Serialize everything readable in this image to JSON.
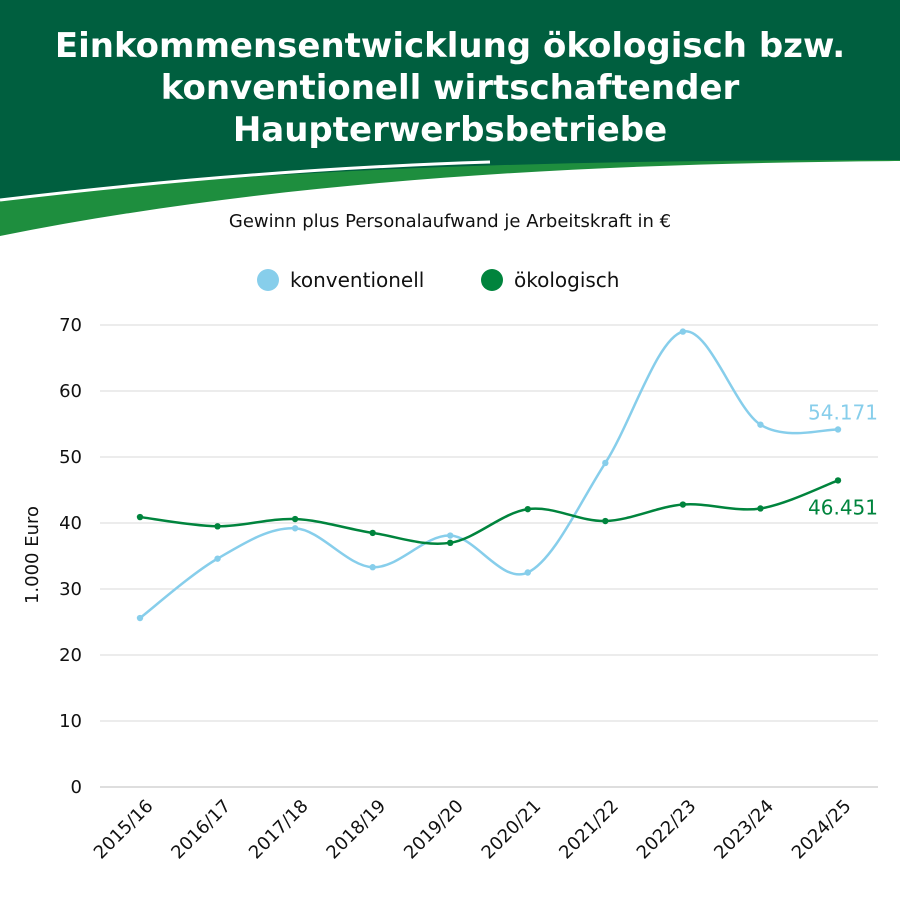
{
  "header": {
    "title_lines": [
      "Einkommensentwicklung ökologisch bzw.",
      "konventionell wirtschaftender",
      "Haupterwerbsbetriebe"
    ]
  },
  "colors": {
    "header_bg": "#005f3f",
    "swoosh": "#1e8e3e",
    "konventionell": "#87ceeb",
    "oekologisch": "#00843d"
  },
  "chart_data": {
    "type": "line",
    "title": "Einkommensentwicklung ökologisch bzw. konventionell wirtschaftender Haupterwerbsbetriebe",
    "subtitle": "Gewinn plus Personalaufwand je Arbeitskraft in €",
    "ylabel": "1.000 Euro",
    "xlabel": "",
    "ylim": [
      0,
      70
    ],
    "yticks": [
      0,
      10,
      20,
      30,
      40,
      50,
      60,
      70
    ],
    "grid": true,
    "legend_position": "top-center",
    "categories": [
      "2015/16",
      "2016/17",
      "2017/18",
      "2018/19",
      "2019/20",
      "2020/21",
      "2021/22",
      "2022/23",
      "2023/24",
      "2024/25"
    ],
    "series": [
      {
        "name": "konventionell",
        "color": "#87ceeb",
        "values": [
          25.6,
          34.6,
          39.2,
          33.3,
          38.1,
          32.5,
          49.1,
          69.0,
          54.9,
          54.171
        ],
        "end_label": "54.171"
      },
      {
        "name": "ökologisch",
        "color": "#00843d",
        "values": [
          40.9,
          39.5,
          40.6,
          38.5,
          37.0,
          42.1,
          40.3,
          42.8,
          42.2,
          46.451
        ],
        "end_label": "46.451"
      }
    ]
  }
}
